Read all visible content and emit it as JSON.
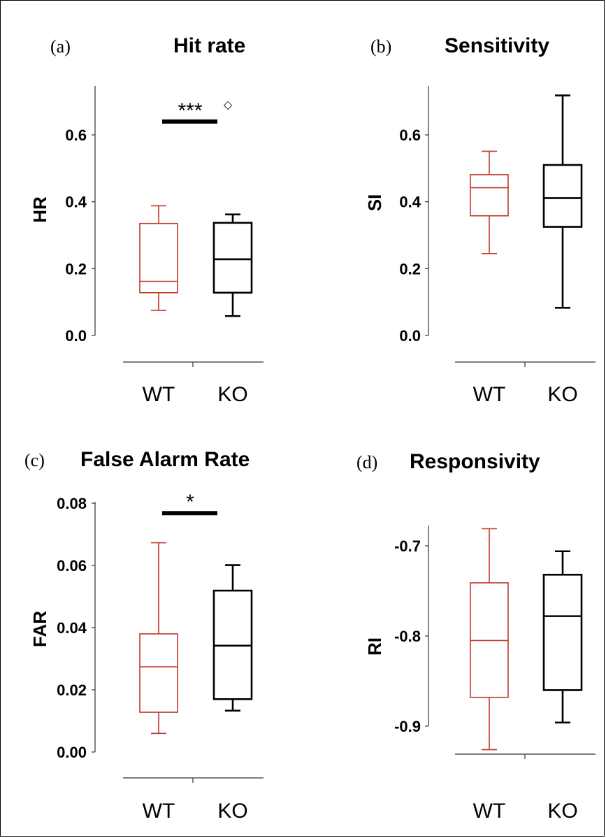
{
  "chart_data": [
    {
      "type": "box",
      "panel_label": "(a)",
      "title": "Hit rate",
      "ylabel": "HR",
      "ylim": [
        0.0,
        0.7
      ],
      "yticks": [
        "0.0",
        "0.2",
        "0.4",
        "0.6"
      ],
      "ytick_values": [
        0.0,
        0.2,
        0.4,
        0.6
      ],
      "categories": [
        "WT",
        "KO"
      ],
      "boxes": [
        {
          "group": "WT",
          "color": "#c0392b",
          "min": 0.075,
          "q1": 0.128,
          "median": 0.162,
          "q3": 0.335,
          "max": 0.388
        },
        {
          "group": "KO",
          "color": "#000000",
          "min": 0.058,
          "q1": 0.128,
          "median": 0.228,
          "q3": 0.337,
          "max": 0.362
        }
      ],
      "significance": {
        "label": "***",
        "y": 0.64
      },
      "marker": "◇"
    },
    {
      "type": "box",
      "panel_label": "(b)",
      "title": "Sensitivity",
      "ylabel": "SI",
      "ylim": [
        0.0,
        0.75
      ],
      "yticks": [
        "0.0",
        "0.2",
        "0.4",
        "0.6"
      ],
      "ytick_values": [
        0.0,
        0.2,
        0.4,
        0.6
      ],
      "categories": [
        "WT",
        "KO"
      ],
      "boxes": [
        {
          "group": "WT",
          "color": "#c0392b",
          "min": 0.245,
          "q1": 0.358,
          "median": 0.442,
          "q3": 0.481,
          "max": 0.551
        },
        {
          "group": "KO",
          "color": "#000000",
          "min": 0.083,
          "q1": 0.325,
          "median": 0.411,
          "q3": 0.51,
          "max": 0.718
        }
      ]
    },
    {
      "type": "box",
      "panel_label": "(c)",
      "title": "False Alarm  Rate",
      "ylabel": "FAR",
      "ylim": [
        0.0,
        0.08
      ],
      "yticks": [
        "0.00",
        "0.02",
        "0.04",
        "0.06",
        "0.08"
      ],
      "ytick_values": [
        0.0,
        0.02,
        0.04,
        0.06,
        0.08
      ],
      "categories": [
        "WT",
        "KO"
      ],
      "boxes": [
        {
          "group": "WT",
          "color": "#c0392b",
          "min": 0.006,
          "q1": 0.0128,
          "median": 0.0274,
          "q3": 0.038,
          "max": 0.0673
        },
        {
          "group": "KO",
          "color": "#000000",
          "min": 0.0133,
          "q1": 0.017,
          "median": 0.0342,
          "q3": 0.0519,
          "max": 0.0601
        }
      ],
      "significance": {
        "label": "*",
        "y": 0.0768
      }
    },
    {
      "type": "box",
      "panel_label": "(d)",
      "title": "Responsivity",
      "ylabel": "RI",
      "ylim": [
        -0.95,
        -0.65
      ],
      "yticks": [
        "-0.9",
        "-0.8",
        "-0.7"
      ],
      "ytick_values": [
        -0.9,
        -0.8,
        -0.7
      ],
      "categories": [
        "WT",
        "KO"
      ],
      "boxes": [
        {
          "group": "WT",
          "color": "#c0392b",
          "min": -0.926,
          "q1": -0.868,
          "median": -0.805,
          "q3": -0.741,
          "max": -0.681
        },
        {
          "group": "KO",
          "color": "#000000",
          "min": -0.896,
          "q1": -0.86,
          "median": -0.778,
          "q3": -0.732,
          "max": -0.706
        }
      ]
    }
  ]
}
